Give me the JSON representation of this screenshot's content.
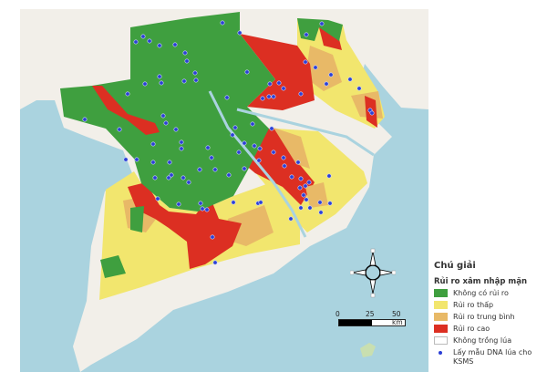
{
  "legend": {
    "title": "Chú giải",
    "subtitle": "Rủi ro xâm nhập mặn",
    "items": [
      {
        "label": "Không có rủi ro",
        "color": "#3f9f3f",
        "type": "fill"
      },
      {
        "label": "Rủi ro thấp",
        "color": "#f2e66e",
        "type": "fill"
      },
      {
        "label": "Rủi ro trung bình",
        "color": "#e8b967",
        "type": "fill"
      },
      {
        "label": "Rủi ro cao",
        "color": "#dc2f22",
        "type": "fill"
      },
      {
        "label": "Không trồng lúa",
        "color": "#ffffff",
        "type": "fill"
      },
      {
        "label": "Lấy mẫu DNA lúa cho KSMS",
        "color": "#2b3fd6",
        "type": "point"
      }
    ]
  },
  "scale_bar": {
    "labels": [
      "0",
      "25",
      "50 km"
    ]
  },
  "north_arrow": {
    "icon": "compass-rose-icon"
  },
  "colors": {
    "sea": "#aad3df",
    "land": "#f2efe9"
  }
}
